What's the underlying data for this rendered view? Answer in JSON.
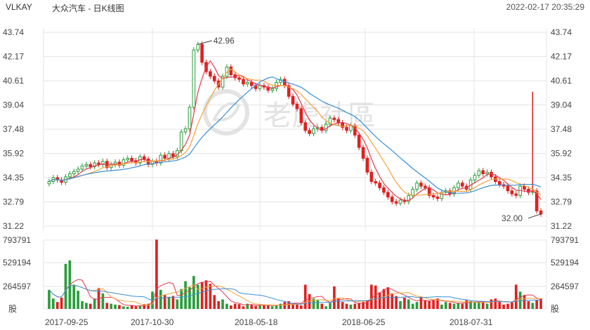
{
  "header": {
    "symbol": "VLKAY",
    "name": "大众汽车 - 日K线图",
    "datetime": "2022-02-17 20:35:29"
  },
  "watermark": "老虎社區",
  "colors": {
    "up": "#2a9d3c",
    "down": "#e02020",
    "ma5": "#e23a4d",
    "ma10": "#f2a33a",
    "ma20": "#3a8fd6",
    "grid": "#e4e4e4"
  },
  "chart_data": {
    "type": "candlestick",
    "price_axis": {
      "ticks": [
        "43.74",
        "42.17",
        "40.61",
        "39.04",
        "37.48",
        "35.92",
        "34.35",
        "32.79",
        "31.22"
      ],
      "ylim": [
        31.22,
        43.74
      ]
    },
    "volume_axis": {
      "ticks": [
        "793791",
        "529194",
        "264597"
      ],
      "unit_label": "股"
    },
    "x_tick_labels": [
      "2017-09-25",
      "2017-10-30",
      "2018-05-18",
      "2018-06-25",
      "2018-07-31"
    ],
    "max_label": "42.96",
    "min_label": "32.00",
    "close": [
      34.1,
      34.35,
      34.2,
      34.05,
      34.4,
      34.6,
      34.75,
      34.9,
      35.1,
      35.2,
      35.05,
      35.3,
      35.2,
      35.4,
      35.0,
      35.2,
      35.35,
      35.15,
      35.5,
      35.6,
      35.45,
      35.3,
      35.7,
      35.55,
      35.2,
      35.4,
      35.3,
      35.8,
      35.6,
      35.9,
      35.7,
      36.1,
      37.3,
      37.5,
      38.9,
      42.6,
      42.96,
      41.8,
      41.2,
      40.9,
      40.6,
      40.2,
      40.9,
      41.5,
      41.0,
      40.8,
      40.7,
      40.4,
      40.5,
      40.3,
      40.1,
      40.3,
      40.2,
      40.0,
      40.1,
      40.5,
      40.7,
      40.3,
      39.6,
      39.1,
      38.8,
      37.9,
      37.4,
      37.2,
      37.5,
      37.6,
      37.4,
      37.8,
      38.2,
      38.1,
      37.9,
      37.6,
      37.4,
      37.7,
      37.1,
      36.3,
      35.6,
      34.7,
      34.1,
      34.0,
      33.7,
      33.4,
      33.1,
      32.8,
      32.7,
      32.9,
      32.8,
      33.2,
      33.6,
      34.0,
      33.8,
      33.7,
      33.2,
      33.1,
      33.0,
      33.4,
      33.5,
      33.3,
      33.7,
      34.0,
      33.8,
      33.6,
      34.2,
      34.5,
      34.8,
      34.6,
      34.7,
      34.4,
      34.1,
      33.9,
      33.8,
      33.5,
      33.3,
      33.2,
      33.8,
      33.6,
      33.4,
      33.5,
      32.2,
      32.0
    ],
    "volume": [
      220000,
      120000,
      80000,
      130000,
      520000,
      560000,
      280000,
      210000,
      90000,
      70000,
      60000,
      120000,
      240000,
      180000,
      70000,
      60000,
      50000,
      45000,
      30000,
      25000,
      45000,
      30000,
      40000,
      55000,
      60000,
      200000,
      800000,
      220000,
      160000,
      140000,
      150000,
      110000,
      230000,
      320000,
      250000,
      380000,
      280000,
      310000,
      330000,
      290000,
      160000,
      90000,
      110000,
      60000,
      40000,
      60000,
      55000,
      30000,
      60000,
      45000,
      35000,
      40000,
      50000,
      45000,
      30000,
      40000,
      60000,
      80000,
      90000,
      60000,
      50000,
      40000,
      280000,
      170000,
      120000,
      100000,
      60000,
      30000,
      70000,
      260000,
      120000,
      80000,
      60000,
      50000,
      60000,
      70000,
      80000,
      100000,
      280000,
      270000,
      190000,
      230000,
      250000,
      180000,
      150000,
      90000,
      130000,
      110000,
      60000,
      80000,
      140000,
      100000,
      90000,
      110000,
      120000,
      50000,
      80000,
      70000,
      60000,
      70000,
      60000,
      100000,
      90000,
      80000,
      70000,
      90000,
      60000,
      110000,
      120000,
      80000,
      50000,
      60000,
      80000,
      280000,
      200000,
      160000,
      90000,
      70000,
      100000,
      120000
    ]
  }
}
